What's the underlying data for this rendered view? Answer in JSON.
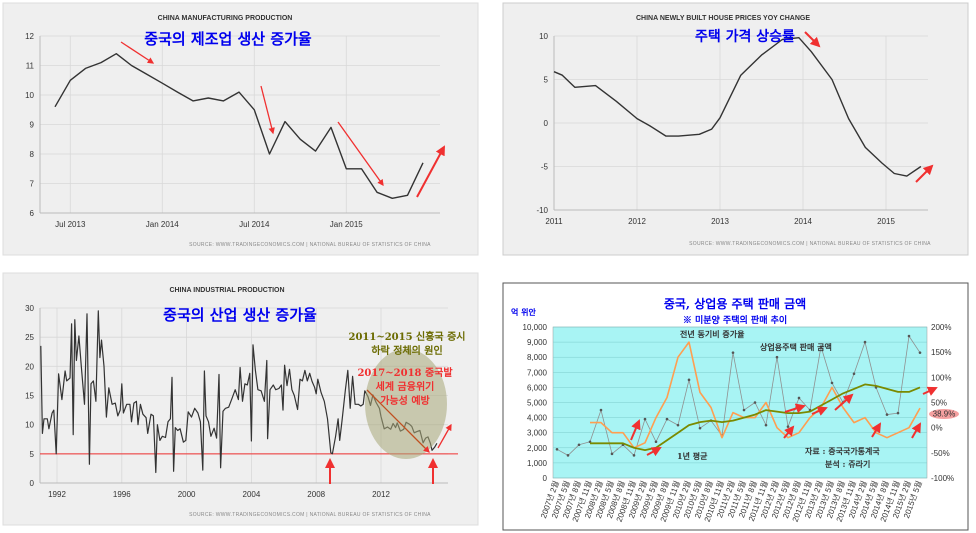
{
  "colors": {
    "panel_bg": "#efefef",
    "line": "#333333",
    "annot_red": "#f03030",
    "annot_blue": "#0000ee",
    "annot_olive": "#6b6b00",
    "cyan_bg": "#a8f4f4",
    "orange": "#ff9e50",
    "olive": "#7a8a00",
    "gray_dot": "#909090"
  },
  "chart_data": [
    {
      "type": "line",
      "title": "CHINA MANUFACTURING PRODUCTION",
      "annotation": "중국의 제조업 생산 증가율",
      "source": "SOURCE: WWW.TRADINGECONOMICS.COM  |  NATIONAL BUREAU OF STATISTICS OF CHINA",
      "ylim": [
        6,
        12
      ],
      "yticks": [
        6,
        7,
        8,
        9,
        10,
        11,
        12
      ],
      "xticks": [
        {
          "x": 2013.5,
          "label": "Jul 2013"
        },
        {
          "x": 2014.0,
          "label": "Jan 2014"
        },
        {
          "x": 2014.5,
          "label": "Jul 2014"
        },
        {
          "x": 2015.0,
          "label": "Jan 2015"
        }
      ],
      "x": [
        2013.417,
        2013.5,
        2013.583,
        2013.667,
        2013.75,
        2013.833,
        2013.917,
        2014.0,
        2014.083,
        2014.167,
        2014.25,
        2014.333,
        2014.417,
        2014.5,
        2014.583,
        2014.667,
        2014.75,
        2014.833,
        2014.917,
        2015.0,
        2015.083,
        2015.167,
        2015.25,
        2015.333,
        2015.417
      ],
      "y": [
        9.6,
        10.5,
        10.9,
        11.1,
        11.4,
        11.0,
        10.7,
        10.4,
        10.1,
        9.8,
        9.9,
        9.8,
        10.1,
        9.5,
        8.0,
        9.1,
        8.5,
        8.1,
        8.9,
        7.5,
        7.5,
        6.7,
        6.5,
        6.6,
        7.7
      ]
    },
    {
      "type": "line",
      "title": "CHINA NEWLY BUILT HOUSE PRICES YOY CHANGE",
      "annotation": "주택 가격 상승률",
      "source": "SOURCE: WWW.TRADINGECONOMICS.COM  |  NATIONAL BUREAU OF STATISTICS OF CHINA",
      "ylim": [
        -10,
        10
      ],
      "yticks": [
        -10,
        -5,
        0,
        5,
        10
      ],
      "xticks": [
        {
          "x": 2011,
          "label": "2011"
        },
        {
          "x": 2012,
          "label": "2012"
        },
        {
          "x": 2013,
          "label": "2013"
        },
        {
          "x": 2014,
          "label": "2014"
        },
        {
          "x": 2015,
          "label": "2015"
        }
      ],
      "x": [
        2011.0,
        2011.1,
        2011.25,
        2011.5,
        2011.75,
        2012.0,
        2012.15,
        2012.35,
        2012.5,
        2012.75,
        2012.9,
        2013.0,
        2013.25,
        2013.5,
        2013.75,
        2013.95,
        2014.1,
        2014.35,
        2014.55,
        2014.75,
        2014.95,
        2015.1,
        2015.25,
        2015.42
      ],
      "y": [
        5.9,
        5.5,
        4.1,
        4.3,
        2.5,
        0.5,
        -0.3,
        -1.5,
        -1.5,
        -1.3,
        -0.7,
        0.6,
        5.5,
        7.8,
        9.6,
        9.8,
        8.2,
        5.0,
        0.5,
        -2.8,
        -4.6,
        -5.8,
        -6.1,
        -5.0
      ]
    },
    {
      "type": "line",
      "title": "CHINA INDUSTRIAL PRODUCTION",
      "annotation": "중국의 산업 생산 증가율",
      "annotation2": [
        "2011~2015 신흥국 증시",
        "하락 정체의 원인"
      ],
      "annotation3": [
        "2017~2018 중국발",
        "세계 금융위기",
        "가능성 예방"
      ],
      "source": "SOURCE: WWW.TRADINGECONOMICS.COM  |  NATIONAL BUREAU OF STATISTICS OF CHINA",
      "ylim": [
        0,
        30
      ],
      "yticks": [
        0,
        5,
        10,
        15,
        20,
        25,
        30
      ],
      "reference_line": 5,
      "xticks": [
        {
          "x": 1992,
          "label": "1992"
        },
        {
          "x": 1996,
          "label": "1996"
        },
        {
          "x": 2000,
          "label": "2000"
        },
        {
          "x": 2004,
          "label": "2004"
        },
        {
          "x": 2008,
          "label": "2008"
        },
        {
          "x": 2012,
          "label": "2012"
        }
      ],
      "x": [
        1991.0,
        1991.1,
        1991.2,
        1991.4,
        1991.5,
        1991.7,
        1991.8,
        1991.95,
        1992.1,
        1992.3,
        1992.5,
        1992.6,
        1992.8,
        1992.9,
        1993.0,
        1993.1,
        1993.2,
        1993.35,
        1993.5,
        1993.7,
        1993.85,
        1994.0,
        1994.1,
        1994.25,
        1994.4,
        1994.55,
        1994.65,
        1994.75,
        1994.9,
        1995.05,
        1995.2,
        1995.4,
        1995.6,
        1995.75,
        1995.9,
        1996.0,
        1996.1,
        1996.3,
        1996.5,
        1996.6,
        1996.75,
        1996.9,
        1997.0,
        1997.15,
        1997.3,
        1997.5,
        1997.6,
        1997.8,
        1997.95,
        1998.1,
        1998.2,
        1998.35,
        1998.5,
        1998.7,
        1998.85,
        1999.0,
        1999.1,
        1999.2,
        1999.3,
        1999.45,
        1999.6,
        1999.8,
        1999.95,
        2000.1,
        2000.3,
        2000.5,
        2000.7,
        2000.85,
        2001.0,
        2001.1,
        2001.2,
        2001.35,
        2001.5,
        2001.7,
        2001.85,
        2002.0,
        2002.1,
        2002.25,
        2002.4,
        2002.6,
        2002.8,
        2003.0,
        2003.2,
        2003.3,
        2003.45,
        2003.6,
        2003.75,
        2003.9,
        2004.0,
        2004.1,
        2004.25,
        2004.4,
        2004.6,
        2004.8,
        2004.95,
        2005.0,
        2005.15,
        2005.35,
        2005.5,
        2005.7,
        2005.85,
        2005.95,
        2006.05,
        2006.2,
        2006.35,
        2006.5,
        2006.65,
        2006.85,
        2007.0,
        2007.15,
        2007.3,
        2007.45,
        2007.6,
        2007.75,
        2007.9,
        2008.0,
        2008.1,
        2008.3,
        2008.5,
        2008.7,
        2008.9,
        2009.0,
        2009.2,
        2009.35,
        2009.45,
        2009.6,
        2009.8,
        2009.95,
        2010.1,
        2010.25,
        2010.4,
        2010.6,
        2010.75,
        2010.9,
        2011.0,
        2011.2,
        2011.35,
        2011.5,
        2011.7,
        2011.9,
        2012.0,
        2012.2,
        2012.4,
        2012.6,
        2012.75,
        2012.9,
        2013.0,
        2013.2,
        2013.4,
        2013.55,
        2013.75,
        2013.9,
        2014.05,
        2014.2,
        2014.4,
        2014.6,
        2014.75,
        2014.9,
        2015.05,
        2015.15,
        2015.3,
        2015.45
      ],
      "y": [
        23.5,
        8.5,
        11,
        11,
        9.3,
        12,
        12.5,
        5,
        18.7,
        14.3,
        19.2,
        17.5,
        18,
        27.3,
        8.3,
        28,
        21,
        25.2,
        20,
        13.5,
        29,
        3.2,
        17,
        17.5,
        14,
        29.5,
        21.5,
        24.5,
        20,
        11.3,
        16.3,
        13.5,
        13.7,
        11.5,
        12.5,
        17,
        12,
        13.5,
        13.5,
        10.5,
        13.7,
        14,
        10,
        13.5,
        11.8,
        11.2,
        8.5,
        11.8,
        11.5,
        1.8,
        10,
        7.3,
        8,
        7.8,
        10.5,
        11,
        18.1,
        2,
        9.5,
        9,
        9.3,
        7,
        7.3,
        12.2,
        11.3,
        12.8,
        12,
        10.5,
        2.2,
        19.2,
        11.5,
        10.5,
        8,
        9.4,
        7.7,
        18.6,
        2.6,
        12.3,
        12.8,
        13,
        14.5,
        16,
        14.3,
        19.8,
        14,
        17,
        16.8,
        18.8,
        7.2,
        23.7,
        19.3,
        16,
        15.8,
        14,
        21,
        7.6,
        16,
        16.8,
        16,
        16.2,
        16.8,
        12.5,
        20.2,
        16.7,
        19.5,
        16,
        15,
        12.6,
        17.8,
        17.5,
        19.3,
        17.5,
        18.8,
        17.4,
        16.4,
        15.3,
        17.8,
        15.5,
        14,
        11,
        5.2,
        5,
        8,
        11,
        7.3,
        10.8,
        16,
        19.3,
        12.8,
        18.3,
        13.5,
        13.5,
        13.2,
        13.5,
        15.8,
        14.8,
        13.3,
        15.1,
        13.8,
        12.8,
        11.4,
        9.3,
        9.6,
        9.2,
        10.2,
        9.5,
        10.3,
        8.9,
        9.2,
        10.4,
        10.1,
        9.7,
        8.6,
        8.8,
        9,
        6.9,
        7.7,
        7.9,
        6.8,
        5.6,
        6.1,
        6.8
      ]
    },
    {
      "type": "line",
      "title": "중국, 상업용 주택 판매 금액",
      "subtitle": "※ 미분양 주택의 판매 추이",
      "ylabel_left": "억 위안",
      "ylim_left": [
        0,
        10000
      ],
      "yticks_left": [
        "0",
        "1,000",
        "2,000",
        "3,000",
        "4,000",
        "5,000",
        "6,000",
        "7,000",
        "8,000",
        "9,000",
        "10,000"
      ],
      "ylim_right": [
        -100,
        200
      ],
      "yticks_right": [
        "-100%",
        "-50%",
        "0%",
        "50%",
        "100%",
        "150%",
        "200%"
      ],
      "categories": [
        "2007년 2월",
        "2007년 5월",
        "2007년 8월",
        "2007년 11월",
        "2008년 2월",
        "2008년 5월",
        "2008년 8월",
        "2008년 11월",
        "2009년 2월",
        "2009년 5월",
        "2009년 8월",
        "2009년 11월",
        "2010년 2월",
        "2010년 5월",
        "2010년 8월",
        "2010년 11월",
        "2011년 2월",
        "2011년 5월",
        "2011년 8월",
        "2011년 11월",
        "2012년 2월",
        "2012년 5월",
        "2012년 8월",
        "2012년 11월",
        "2013년 2월",
        "2013년 5월",
        "2013년 8월",
        "2013년 11월",
        "2014년 2월",
        "2014년 5월",
        "2014년 8월",
        "2014년 11월",
        "2015년 2월",
        "2015년 5월"
      ],
      "series": [
        {
          "name": "상업용주택 판매 금액",
          "axis": "left",
          "values": [
            1900,
            1500,
            2200,
            2400,
            4500,
            1600,
            2200,
            1500,
            3900,
            2400,
            3900,
            3500,
            6500,
            3300,
            3800,
            2800,
            8300,
            4500,
            5000,
            3500,
            8000,
            3400,
            5300,
            4500,
            8700,
            6300,
            5000,
            6900,
            9000,
            6000,
            4200,
            4300,
            9400,
            8300
          ]
        },
        {
          "name": "전년 동기비 증가율",
          "axis": "right",
          "values": [
            null,
            null,
            null,
            10,
            10,
            -10,
            -10,
            -40,
            -30,
            20,
            60,
            140,
            170,
            70,
            40,
            -20,
            30,
            20,
            20,
            50,
            0,
            -20,
            -10,
            20,
            40,
            80,
            40,
            10,
            20,
            -10,
            -20,
            -10,
            0,
            38.9
          ]
        },
        {
          "name": "1년 평균",
          "axis": "left",
          "values": [
            null,
            null,
            null,
            2300,
            2300,
            2300,
            2300,
            2000,
            1850,
            2000,
            2500,
            3000,
            3500,
            3700,
            3800,
            3700,
            3800,
            4000,
            4200,
            4500,
            4400,
            4300,
            4300,
            4400,
            4800,
            5200,
            5600,
            5900,
            6200,
            6100,
            5900,
            5700,
            5700,
            6000
          ]
        }
      ],
      "highlight_label": "38.9%",
      "source_note": [
        "자료 : 중국국가통계국",
        "분석 : 쥬라기"
      ]
    }
  ]
}
